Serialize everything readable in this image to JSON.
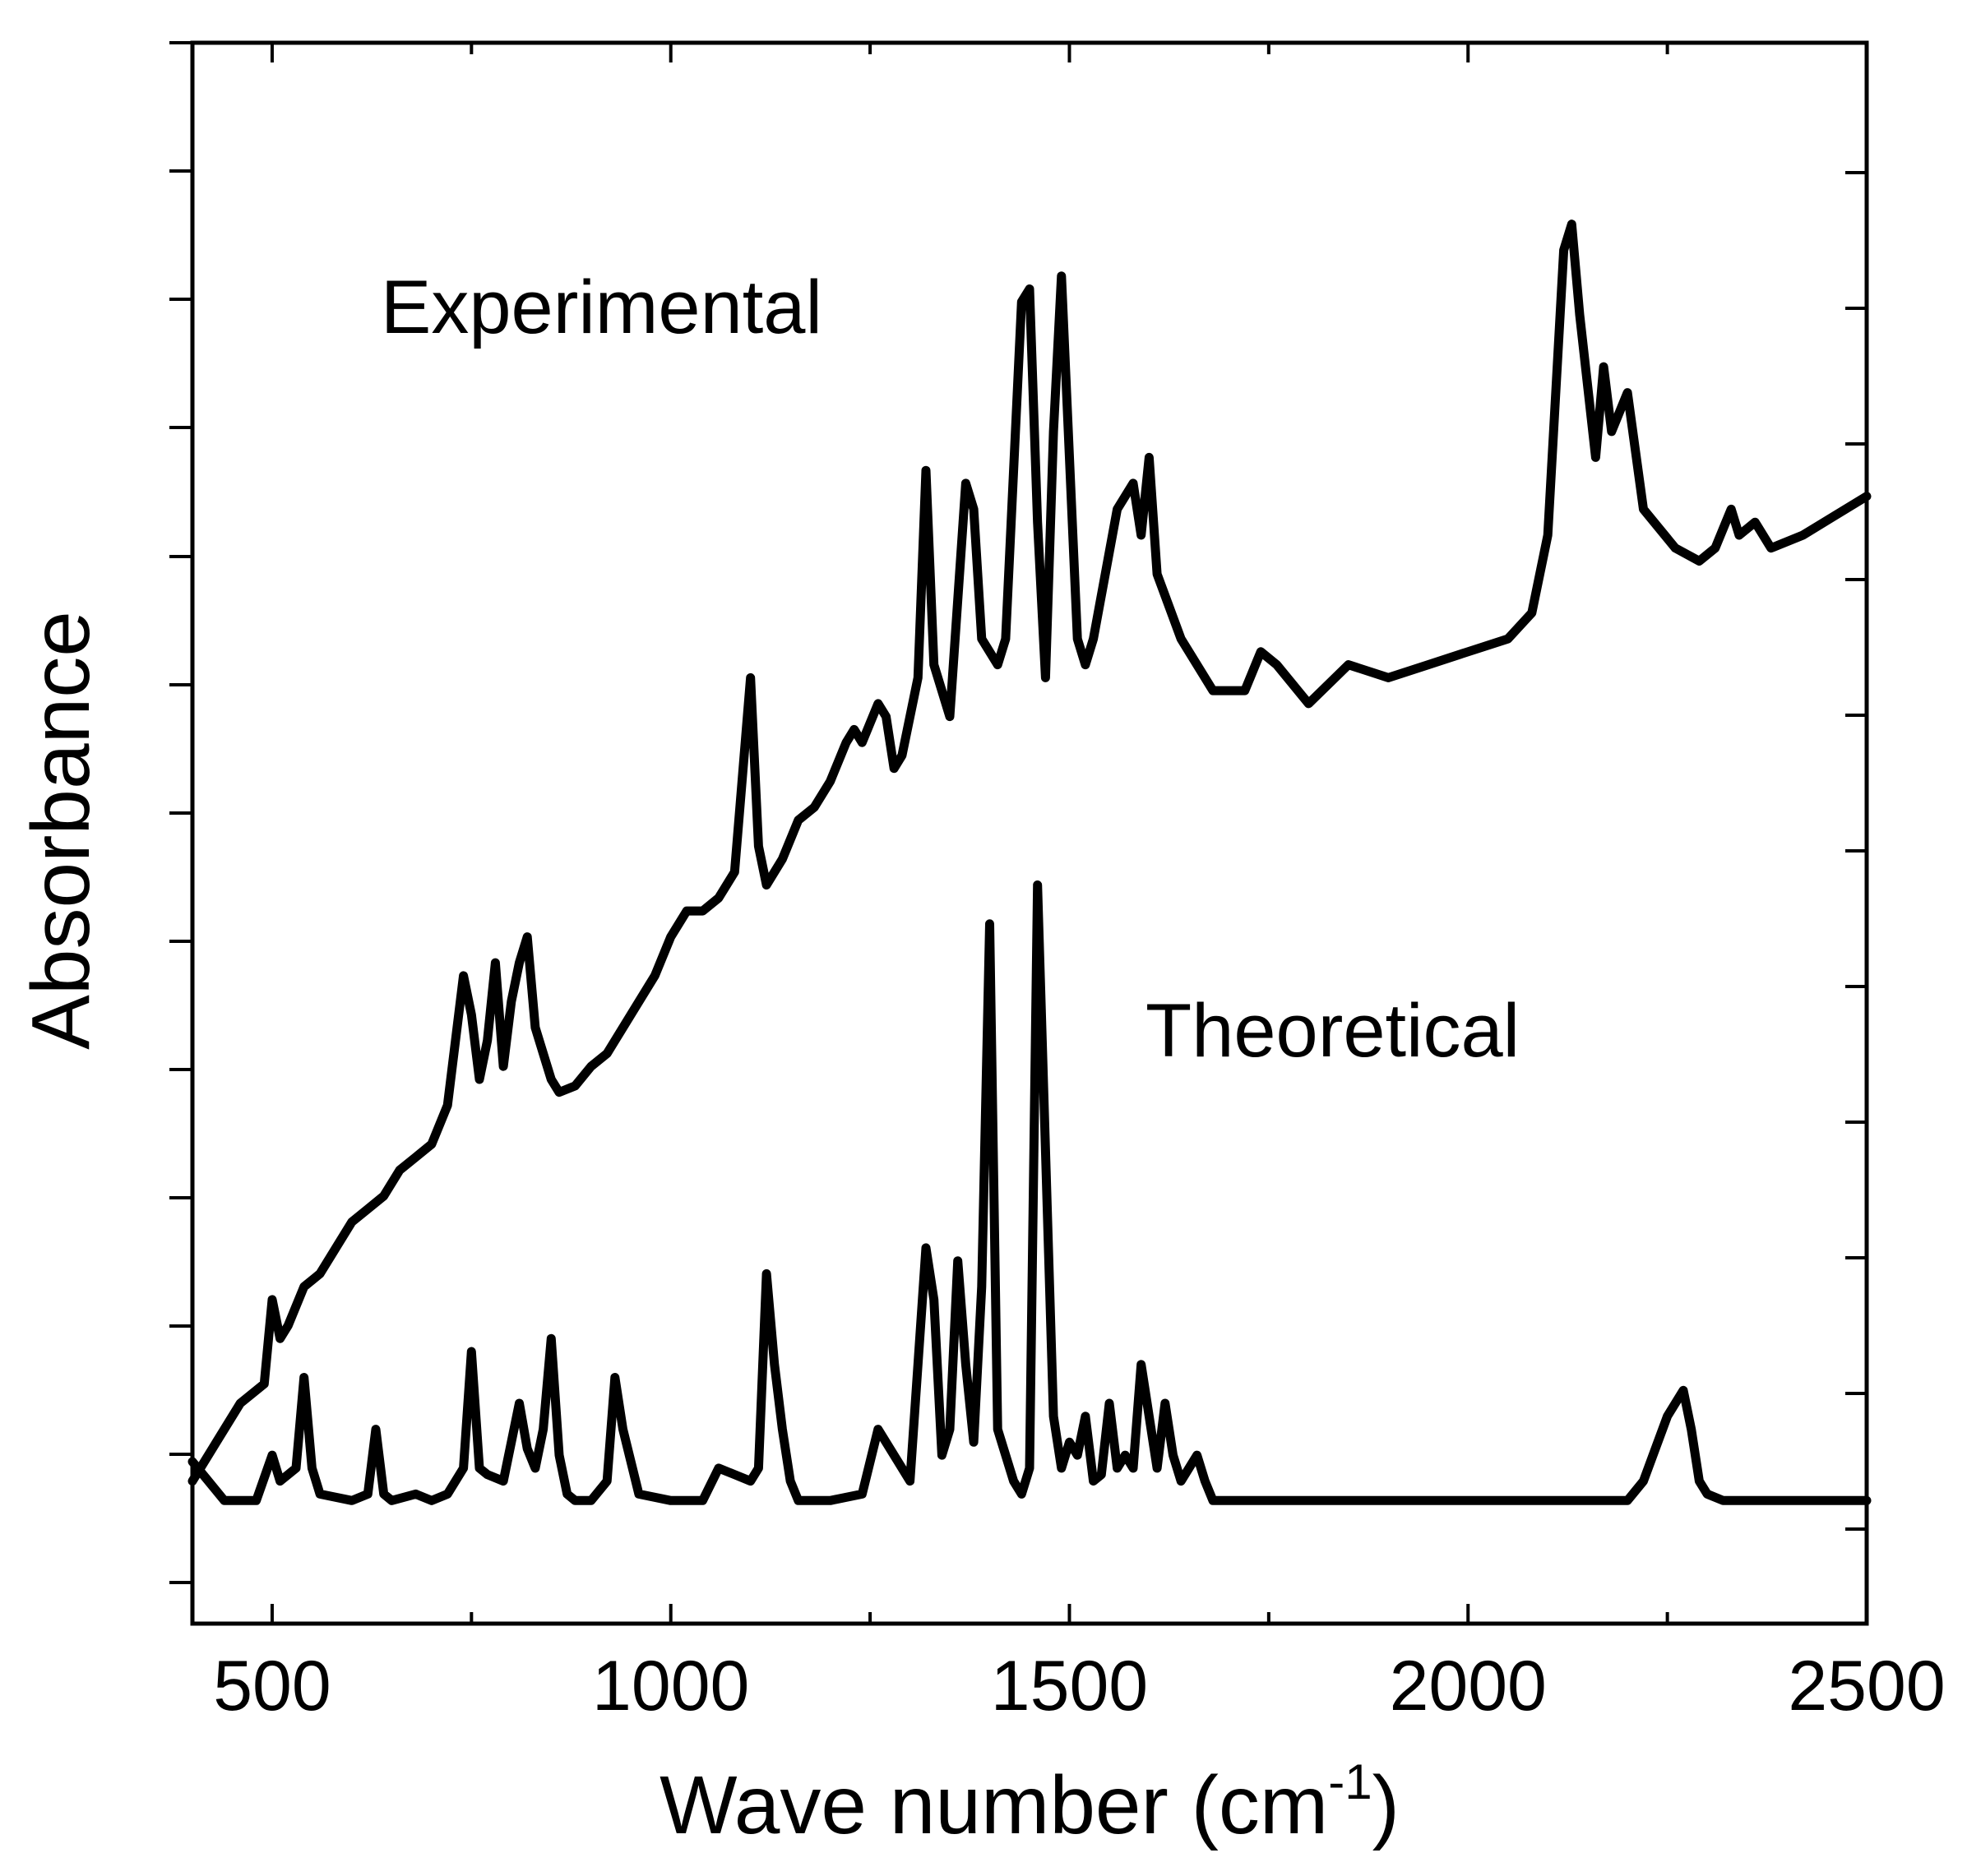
{
  "chart_data": {
    "type": "line",
    "title": "",
    "xlabel": "Wave number (cm",
    "xlabel_sup": "-1",
    "xlabel_close": ")",
    "ylabel": "Absorbance",
    "xlim": [
      400,
      2500
    ],
    "ylim": [
      0,
      12.2
    ],
    "x_ticks": [
      500,
      1000,
      1500,
      2000,
      2500
    ],
    "x_tick_labels": [
      "500",
      "1000",
      "1500",
      "2000",
      "2500"
    ],
    "y_tick_labels_shown": false,
    "annotations": [
      "Experimental",
      "Theoretical"
    ],
    "series": [
      {
        "name": "Experimental",
        "x": [
          400,
          430,
          460,
          490,
          500,
          510,
          520,
          540,
          560,
          580,
          600,
          620,
          640,
          660,
          680,
          700,
          720,
          740,
          750,
          760,
          770,
          780,
          790,
          800,
          810,
          820,
          830,
          840,
          850,
          860,
          880,
          900,
          920,
          950,
          980,
          1000,
          1020,
          1040,
          1060,
          1080,
          1100,
          1110,
          1120,
          1140,
          1160,
          1180,
          1200,
          1220,
          1230,
          1240,
          1260,
          1270,
          1280,
          1290,
          1310,
          1320,
          1330,
          1350,
          1370,
          1380,
          1390,
          1410,
          1420,
          1440,
          1450,
          1460,
          1470,
          1480,
          1490,
          1500,
          1510,
          1520,
          1530,
          1560,
          1580,
          1590,
          1600,
          1610,
          1640,
          1680,
          1720,
          1740,
          1760,
          1800,
          1850,
          1900,
          1950,
          2000,
          2050,
          2080,
          2100,
          2120,
          2130,
          2140,
          2160,
          2170,
          2180,
          2200,
          2220,
          2260,
          2290,
          2310,
          2330,
          2340,
          2360,
          2380,
          2420,
          2460,
          2500
        ],
        "y": [
          1.1,
          1.4,
          1.7,
          1.85,
          2.5,
          2.2,
          2.3,
          2.6,
          2.7,
          2.9,
          3.1,
          3.2,
          3.3,
          3.5,
          3.6,
          3.7,
          4.0,
          5.0,
          4.7,
          4.2,
          4.5,
          5.1,
          4.3,
          4.8,
          5.1,
          5.3,
          4.6,
          4.4,
          4.2,
          4.1,
          4.15,
          4.3,
          4.4,
          4.7,
          5.0,
          5.3,
          5.5,
          5.5,
          5.6,
          5.8,
          7.3,
          6.0,
          5.7,
          5.9,
          6.2,
          6.3,
          6.5,
          6.8,
          6.9,
          6.8,
          7.1,
          7.0,
          6.6,
          6.7,
          7.3,
          8.9,
          7.4,
          7.0,
          8.8,
          8.6,
          7.6,
          7.4,
          7.6,
          10.2,
          10.3,
          8.5,
          7.3,
          9.2,
          10.4,
          9.0,
          7.6,
          7.4,
          7.6,
          8.6,
          8.8,
          8.4,
          9.0,
          8.1,
          7.6,
          7.2,
          7.2,
          7.5,
          7.4,
          7.1,
          7.4,
          7.3,
          7.4,
          7.5,
          7.6,
          7.8,
          8.4,
          10.6,
          10.8,
          10.1,
          9.0,
          9.7,
          9.2,
          9.5,
          8.6,
          8.3,
          8.2,
          8.3,
          8.6,
          8.4,
          8.5,
          8.3,
          8.4,
          8.55,
          8.7
        ]
      },
      {
        "name": "Theoretical",
        "x": [
          400,
          420,
          440,
          480,
          500,
          510,
          530,
          540,
          550,
          560,
          600,
          620,
          630,
          640,
          650,
          680,
          700,
          720,
          740,
          750,
          760,
          770,
          790,
          800,
          810,
          820,
          830,
          840,
          850,
          860,
          870,
          880,
          900,
          920,
          930,
          940,
          960,
          1000,
          1040,
          1060,
          1080,
          1100,
          1110,
          1120,
          1130,
          1140,
          1150,
          1160,
          1200,
          1240,
          1260,
          1280,
          1300,
          1320,
          1330,
          1340,
          1350,
          1360,
          1370,
          1380,
          1390,
          1400,
          1410,
          1420,
          1430,
          1440,
          1450,
          1460,
          1480,
          1490,
          1500,
          1510,
          1520,
          1530,
          1540,
          1550,
          1560,
          1570,
          1580,
          1590,
          1600,
          1610,
          1620,
          1630,
          1640,
          1650,
          1660,
          1670,
          1680,
          1700,
          1800,
          2000,
          2200,
          2220,
          2250,
          2270,
          2280,
          2290,
          2300,
          2320,
          2350,
          2400,
          2500
        ],
        "y": [
          1.25,
          1.1,
          0.95,
          0.95,
          1.3,
          1.1,
          1.2,
          1.9,
          1.2,
          1.0,
          0.95,
          1.0,
          1.5,
          1.0,
          0.95,
          1.0,
          0.95,
          1.0,
          1.2,
          2.1,
          1.2,
          1.15,
          1.1,
          1.4,
          1.7,
          1.35,
          1.2,
          1.5,
          2.2,
          1.3,
          1.0,
          0.95,
          0.95,
          1.1,
          1.9,
          1.5,
          1.0,
          0.95,
          0.95,
          1.2,
          1.15,
          1.1,
          1.2,
          2.7,
          2.0,
          1.5,
          1.1,
          0.95,
          0.95,
          1.0,
          1.5,
          1.3,
          1.1,
          2.9,
          2.5,
          1.3,
          1.5,
          2.8,
          2.0,
          1.4,
          2.6,
          5.4,
          1.5,
          1.3,
          1.1,
          1.0,
          1.2,
          5.7,
          1.6,
          1.2,
          1.4,
          1.3,
          1.6,
          1.1,
          1.15,
          1.7,
          1.2,
          1.3,
          1.2,
          2.0,
          1.6,
          1.2,
          1.7,
          1.3,
          1.1,
          1.2,
          1.3,
          1.1,
          0.95,
          0.95,
          0.95,
          0.95,
          0.95,
          1.1,
          1.6,
          1.8,
          1.5,
          1.1,
          1.0,
          0.95,
          0.95,
          0.95,
          0.95
        ]
      }
    ]
  }
}
